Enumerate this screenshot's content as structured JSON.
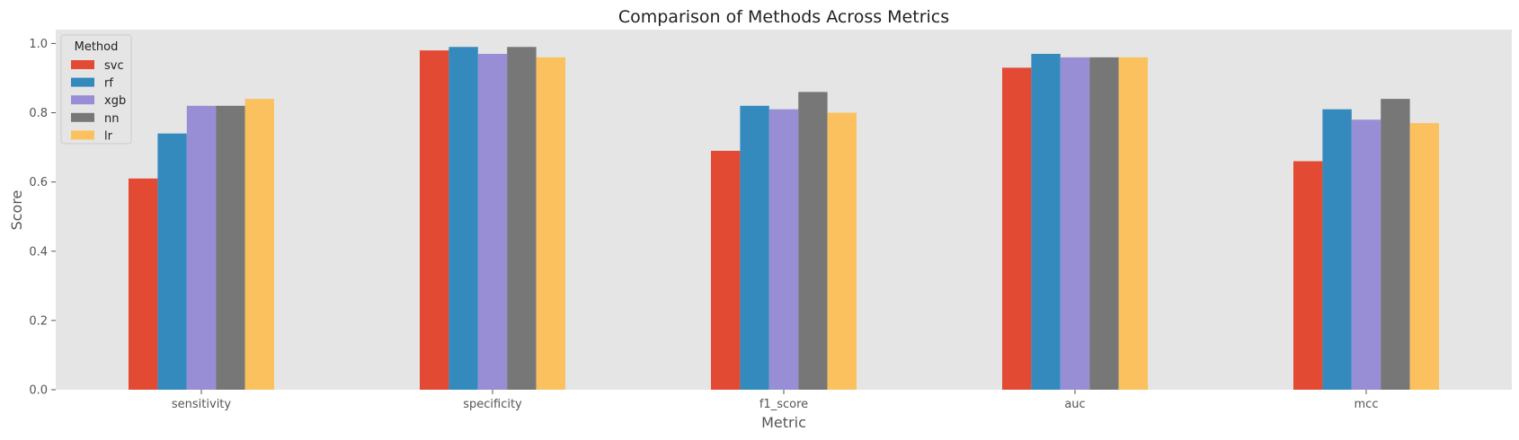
{
  "chart_data": {
    "type": "bar",
    "title": "Comparison of Methods Across Metrics",
    "xlabel": "Metric",
    "ylabel": "Score",
    "categories": [
      "sensitivity",
      "specificity",
      "f1_score",
      "auc",
      "mcc"
    ],
    "ylim": [
      0,
      1.04
    ],
    "yticks": [
      "0.0",
      "0.2",
      "0.4",
      "0.6",
      "0.8",
      "1.0"
    ],
    "grid": false,
    "legend": {
      "title": "Method",
      "placement": "top-left"
    },
    "background_color": "#e5e5e5",
    "series": [
      {
        "name": "svc",
        "color": "#e24a33",
        "values": [
          0.61,
          0.98,
          0.69,
          0.93,
          0.66
        ]
      },
      {
        "name": "rf",
        "color": "#348abd",
        "values": [
          0.74,
          0.99,
          0.82,
          0.97,
          0.81
        ]
      },
      {
        "name": "xgb",
        "color": "#988ed5",
        "values": [
          0.82,
          0.97,
          0.81,
          0.96,
          0.78
        ]
      },
      {
        "name": "nn",
        "color": "#777777",
        "values": [
          0.82,
          0.99,
          0.86,
          0.96,
          0.84
        ]
      },
      {
        "name": "lr",
        "color": "#fbc15e",
        "values": [
          0.84,
          0.96,
          0.8,
          0.96,
          0.77
        ]
      }
    ]
  }
}
